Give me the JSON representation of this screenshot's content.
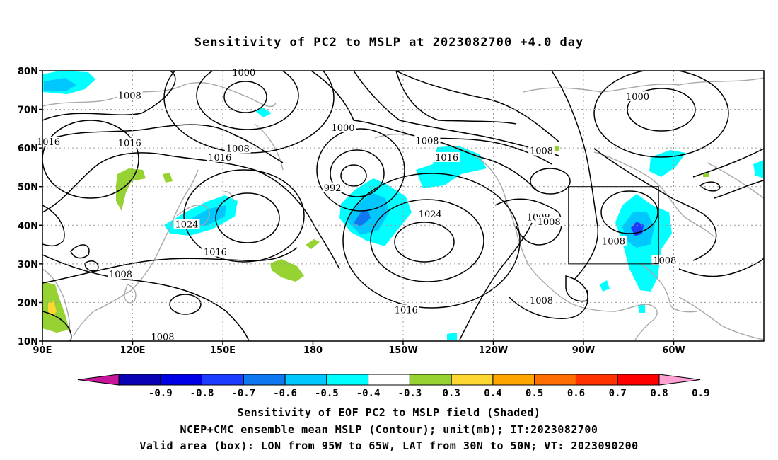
{
  "title": "Sensitivity of PC2 to MSLP at 2023082700 +4.0 day",
  "axes": {
    "lat_ticks": [
      "80N",
      "70N",
      "60N",
      "50N",
      "40N",
      "30N",
      "20N",
      "10N"
    ],
    "lon_ticks": [
      "90E",
      "120E",
      "150E",
      "180",
      "150W",
      "120W",
      "90W",
      "60W"
    ]
  },
  "contour_labels": [
    {
      "text": "1000",
      "lon": 157,
      "lat": 79.3
    },
    {
      "text": "1008",
      "lon": 119,
      "lat": 73.3
    },
    {
      "text": "1016",
      "lon": 92,
      "lat": 61.3
    },
    {
      "text": "1016",
      "lon": 119,
      "lat": 61
    },
    {
      "text": "1000",
      "lon": 190,
      "lat": 65
    },
    {
      "text": "1008",
      "lon": 155,
      "lat": 59.6
    },
    {
      "text": "1016",
      "lon": 149,
      "lat": 57.3
    },
    {
      "text": "992",
      "lon": 186.5,
      "lat": 49.4
    },
    {
      "text": "1008",
      "lon": 218,
      "lat": 61.6
    },
    {
      "text": "1016",
      "lon": 224.5,
      "lat": 57.3
    },
    {
      "text": "1008",
      "lon": 256,
      "lat": 59
    },
    {
      "text": "1000",
      "lon": 288,
      "lat": 73
    },
    {
      "text": "1024",
      "lon": 138,
      "lat": 40
    },
    {
      "text": "1024",
      "lon": 219,
      "lat": 42.6
    },
    {
      "text": "1016",
      "lon": 147.5,
      "lat": 32.8
    },
    {
      "text": "1008",
      "lon": 116,
      "lat": 27
    },
    {
      "text": "1016",
      "lon": 211,
      "lat": 17.8
    },
    {
      "text": "1008",
      "lon": 130,
      "lat": 10.8
    },
    {
      "text": "1008",
      "lon": 255,
      "lat": 41.8
    },
    {
      "text": "1008",
      "lon": 258.5,
      "lat": 40.6
    },
    {
      "text": "1008",
      "lon": 256,
      "lat": 20.3
    },
    {
      "text": "1008",
      "lon": 280,
      "lat": 35.6
    },
    {
      "text": "1008",
      "lon": 297,
      "lat": 30.6
    }
  ],
  "valid_box": {
    "lon_min": 265,
    "lon_max": 295,
    "lat_min": 30,
    "lat_max": 50
  },
  "colorbar": {
    "labels": [
      "-0.9",
      "-0.8",
      "-0.7",
      "-0.6",
      "-0.5",
      "-0.4",
      "-0.3",
      "0.3",
      "0.4",
      "0.5",
      "0.6",
      "0.7",
      "0.8",
      "0.9"
    ],
    "colors": [
      "#c8149b",
      "#0a00b4",
      "#0000e6",
      "#1e3cff",
      "#0f78f0",
      "#00c8ff",
      "#00ffff",
      "#ffffff",
      "#96d232",
      "#ffd732",
      "#ffa500",
      "#ff6e00",
      "#ff3200",
      "#ff0000",
      "#ffa0d2"
    ]
  },
  "caption": {
    "line1": "Sensitivity of EOF PC2 to MSLP field (Shaded)",
    "line2": "NCEP+CMC ensemble mean MSLP (Contour); unit(mb); IT:2023082700",
    "line3": "Valid area (box): LON from 95W to 65W, LAT from 30N to 50N; VT: 2023090200"
  }
}
